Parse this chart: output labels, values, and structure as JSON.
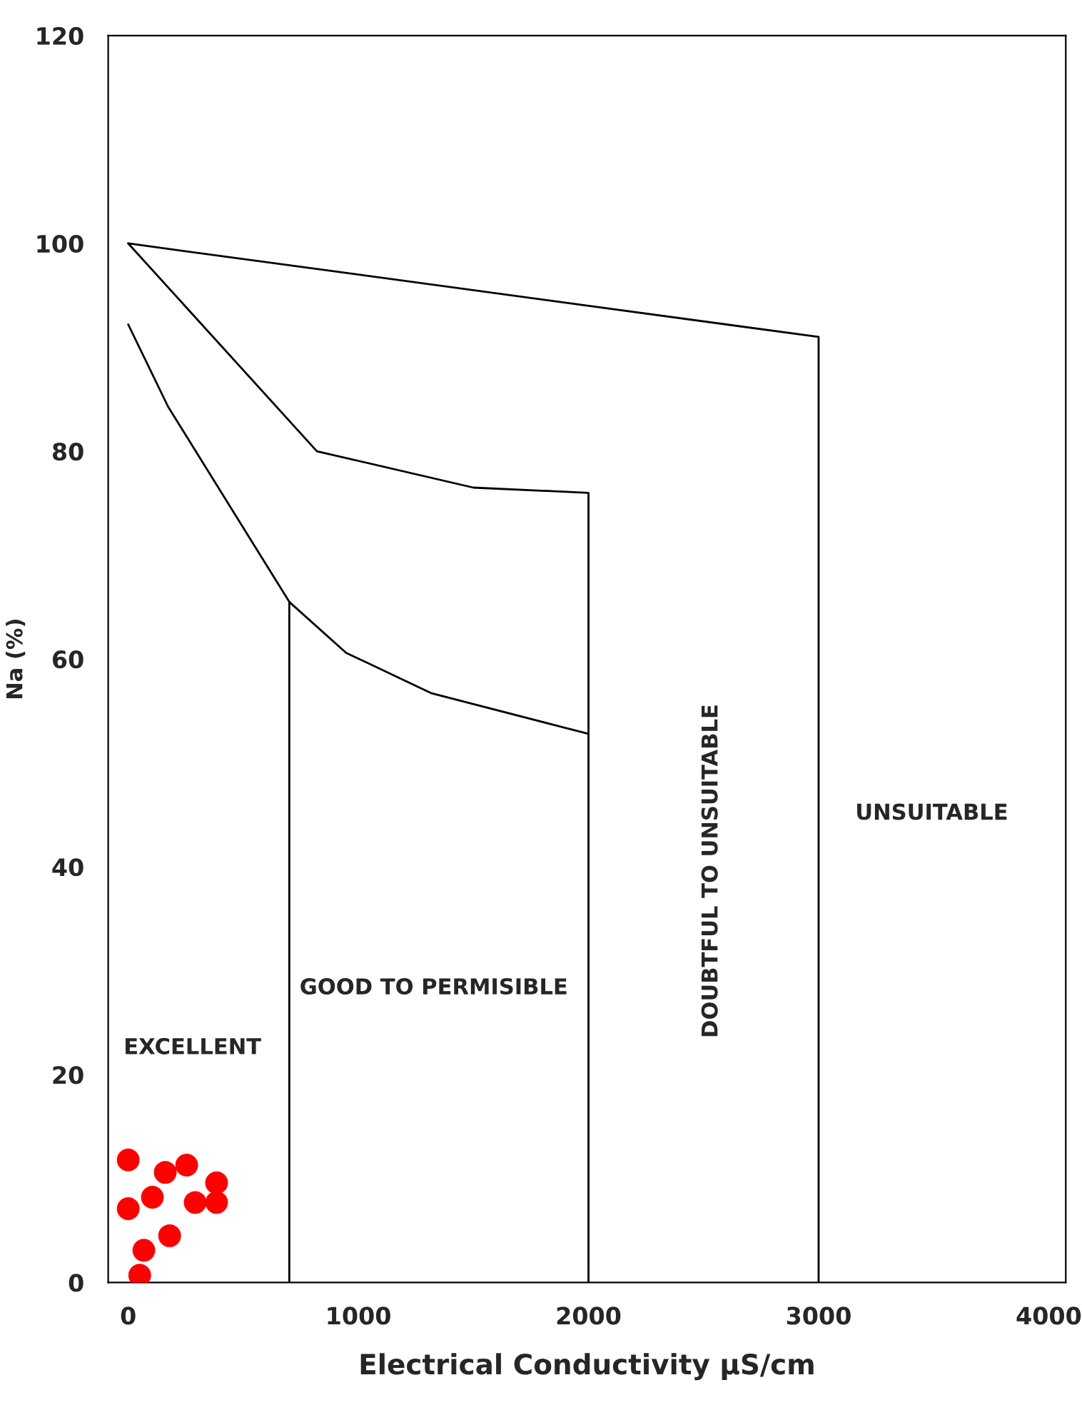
{
  "chart_data": {
    "type": "line",
    "xlabel": "Electrical Conductivity µS/cm",
    "ylabel": "Na (%)",
    "xlim": [
      -87,
      4074
    ],
    "ylim": [
      0,
      120
    ],
    "xticks": [
      0,
      1000,
      2000,
      3000,
      4000
    ],
    "yticks": [
      0,
      20,
      40,
      60,
      80,
      100,
      120
    ],
    "grid": false,
    "legend": false,
    "series": [
      {
        "color": "#000000",
        "x": [
          0,
          3000,
          3000
        ],
        "values": [
          100,
          91,
          0
        ]
      },
      {
        "color": "#000000",
        "x": [
          0,
          820,
          1500,
          2000,
          2000
        ],
        "values": [
          100,
          80,
          76.5,
          76,
          0
        ]
      },
      {
        "color": "#000000",
        "x": [
          0,
          173,
          700,
          947,
          1319,
          2000
        ],
        "values": [
          92.2,
          84.3,
          65.5,
          60.6,
          56.7,
          52.8
        ]
      },
      {
        "color": "#000000",
        "x": [
          700,
          700
        ],
        "values": [
          65.5,
          0
        ]
      },
      {
        "type": "scatter",
        "color": "#ff0000",
        "x": [
          0,
          0,
          105,
          161,
          254,
          384,
          384,
          291,
          180,
          68,
          50
        ],
        "values": [
          11.8,
          7.1,
          8.2,
          10.6,
          11.3,
          9.6,
          7.7,
          7.7,
          4.5,
          3.1,
          0.7
        ]
      }
    ],
    "annotations": [
      "EXCELLENT",
      "GOOD TO PERMISIBLE",
      "DOUBTFUL TO UNSUITABLE",
      "UNSUITABLE"
    ]
  }
}
